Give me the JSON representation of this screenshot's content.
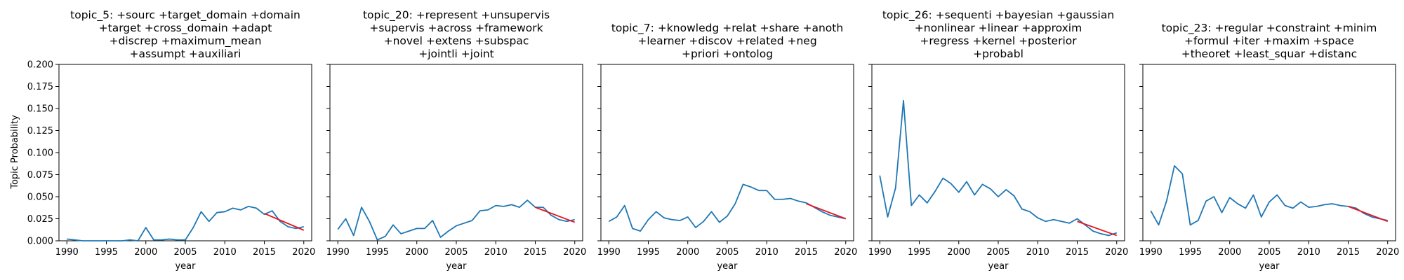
{
  "figure": {
    "ylabel": "Topic Probability",
    "xlabel": "year"
  },
  "chart_data": [
    {
      "type": "line",
      "title_lines": [
        "topic_5: +sourc +target_domain +domain",
        "+target +cross_domain +adapt",
        "+discrep +maximum_mean",
        "+assumpt +auxiliari"
      ],
      "xlabel": "year",
      "ylabel": "Topic Probability",
      "xlim": [
        1989,
        2021
      ],
      "ylim": [
        0,
        0.2
      ],
      "xticks": [
        1990,
        1995,
        2000,
        2005,
        2010,
        2015,
        2020
      ],
      "yticks": [
        0.0,
        0.025,
        0.05,
        0.075,
        0.1,
        0.125,
        0.15,
        0.175,
        0.2
      ],
      "ytick_labels": [
        "0.000",
        "0.025",
        "0.050",
        "0.075",
        "0.100",
        "0.125",
        "0.150",
        "0.175",
        "0.200"
      ],
      "show_ytick_labels": true,
      "series": [
        {
          "x": [
            1990,
            1991,
            1992,
            1993,
            1994,
            1995,
            1996,
            1997,
            1998,
            1999,
            2000,
            2001,
            2002,
            2003,
            2004,
            2005,
            2006,
            2007,
            2008,
            2009,
            2010,
            2011,
            2012,
            2013,
            2014,
            2015,
            2016,
            2017,
            2018,
            2019,
            2020
          ],
          "values": [
            0.002,
            0.001,
            0.0,
            0.0,
            0.0,
            0.0,
            0.0,
            0.0,
            0.001,
            0.0,
            0.015,
            0.001,
            0.001,
            0.002,
            0.001,
            0.001,
            0.015,
            0.033,
            0.022,
            0.032,
            0.033,
            0.037,
            0.035,
            0.039,
            0.037,
            0.03,
            0.034,
            0.022,
            0.016,
            0.014,
            0.016
          ]
        }
      ],
      "trend": {
        "x": [
          2015,
          2020
        ],
        "values": [
          0.031,
          0.012
        ]
      }
    },
    {
      "type": "line",
      "title_lines": [
        "topic_20: +represent +unsupervis",
        "+supervis +across +framework",
        "+novel +extens +subspac",
        "+jointli +joint"
      ],
      "xlabel": "year",
      "ylabel": "",
      "xlim": [
        1989,
        2021
      ],
      "ylim": [
        0,
        0.2
      ],
      "xticks": [
        1990,
        1995,
        2000,
        2005,
        2010,
        2015,
        2020
      ],
      "yticks": [
        0.0,
        0.025,
        0.05,
        0.075,
        0.1,
        0.125,
        0.15,
        0.175,
        0.2
      ],
      "ytick_labels": [],
      "show_ytick_labels": false,
      "series": [
        {
          "x": [
            1990,
            1991,
            1992,
            1993,
            1994,
            1995,
            1996,
            1997,
            1998,
            1999,
            2000,
            2001,
            2002,
            2003,
            2004,
            2005,
            2006,
            2007,
            2008,
            2009,
            2010,
            2011,
            2012,
            2013,
            2014,
            2015,
            2016,
            2017,
            2018,
            2019,
            2020
          ],
          "values": [
            0.013,
            0.025,
            0.006,
            0.038,
            0.022,
            0.001,
            0.005,
            0.018,
            0.008,
            0.011,
            0.014,
            0.014,
            0.023,
            0.004,
            0.011,
            0.017,
            0.02,
            0.023,
            0.034,
            0.035,
            0.04,
            0.039,
            0.041,
            0.038,
            0.046,
            0.038,
            0.038,
            0.029,
            0.024,
            0.022,
            0.024
          ]
        }
      ],
      "trend": {
        "x": [
          2015,
          2020
        ],
        "values": [
          0.038,
          0.021
        ]
      }
    },
    {
      "type": "line",
      "title_lines": [
        "topic_7: +knowledg +relat +share +anoth",
        "+learner +discov +related +neg",
        "+priori +ontolog"
      ],
      "xlabel": "year",
      "ylabel": "",
      "xlim": [
        1989,
        2021
      ],
      "ylim": [
        0,
        0.2
      ],
      "xticks": [
        1990,
        1995,
        2000,
        2005,
        2010,
        2015,
        2020
      ],
      "yticks": [
        0.0,
        0.025,
        0.05,
        0.075,
        0.1,
        0.125,
        0.15,
        0.175,
        0.2
      ],
      "ytick_labels": [],
      "show_ytick_labels": false,
      "series": [
        {
          "x": [
            1990,
            1991,
            1992,
            1993,
            1994,
            1995,
            1996,
            1997,
            1998,
            1999,
            2000,
            2001,
            2002,
            2003,
            2004,
            2005,
            2006,
            2007,
            2008,
            2009,
            2010,
            2011,
            2012,
            2013,
            2014,
            2015,
            2016,
            2017,
            2018,
            2019,
            2020
          ],
          "values": [
            0.022,
            0.027,
            0.04,
            0.014,
            0.011,
            0.024,
            0.033,
            0.026,
            0.024,
            0.023,
            0.027,
            0.015,
            0.022,
            0.033,
            0.021,
            0.028,
            0.042,
            0.064,
            0.061,
            0.057,
            0.057,
            0.047,
            0.047,
            0.048,
            0.045,
            0.043,
            0.038,
            0.033,
            0.029,
            0.027,
            0.025
          ]
        }
      ],
      "trend": {
        "x": [
          2015,
          2020
        ],
        "values": [
          0.042,
          0.025
        ]
      }
    },
    {
      "type": "line",
      "title_lines": [
        "topic_26: +sequenti +bayesian +gaussian",
        "+nonlinear +linear +approxim",
        "+regress +kernel +posterior",
        "+probabl"
      ],
      "xlabel": "year",
      "ylabel": "",
      "xlim": [
        1989,
        2021
      ],
      "ylim": [
        0,
        0.2
      ],
      "xticks": [
        1990,
        1995,
        2000,
        2005,
        2010,
        2015,
        2020
      ],
      "yticks": [
        0.0,
        0.025,
        0.05,
        0.075,
        0.1,
        0.125,
        0.15,
        0.175,
        0.2
      ],
      "ytick_labels": [],
      "show_ytick_labels": false,
      "series": [
        {
          "x": [
            1990,
            1991,
            1992,
            1993,
            1994,
            1995,
            1996,
            1997,
            1998,
            1999,
            2000,
            2001,
            2002,
            2003,
            2004,
            2005,
            2006,
            2007,
            2008,
            2009,
            2010,
            2011,
            2012,
            2013,
            2014,
            2015,
            2016,
            2017,
            2018,
            2019,
            2020
          ],
          "values": [
            0.074,
            0.027,
            0.06,
            0.159,
            0.04,
            0.052,
            0.043,
            0.056,
            0.071,
            0.065,
            0.055,
            0.067,
            0.052,
            0.064,
            0.059,
            0.05,
            0.058,
            0.051,
            0.036,
            0.033,
            0.026,
            0.022,
            0.024,
            0.022,
            0.02,
            0.025,
            0.018,
            0.011,
            0.008,
            0.006,
            0.009
          ]
        }
      ],
      "trend": {
        "x": [
          2015,
          2020
        ],
        "values": [
          0.022,
          0.006
        ]
      }
    },
    {
      "type": "line",
      "title_lines": [
        "topic_23: +regular +constraint +minim",
        "+formul +iter +maxim +space",
        "+theoret +least_squar +distanc"
      ],
      "xlabel": "year",
      "ylabel": "",
      "xlim": [
        1989,
        2021
      ],
      "ylim": [
        0,
        0.2
      ],
      "xticks": [
        1990,
        1995,
        2000,
        2005,
        2010,
        2015,
        2020
      ],
      "yticks": [
        0.0,
        0.025,
        0.05,
        0.075,
        0.1,
        0.125,
        0.15,
        0.175,
        0.2
      ],
      "ytick_labels": [],
      "show_ytick_labels": false,
      "series": [
        {
          "x": [
            1990,
            1991,
            1992,
            1993,
            1994,
            1995,
            1996,
            1997,
            1998,
            1999,
            2000,
            2001,
            2002,
            2003,
            2004,
            2005,
            2006,
            2007,
            2008,
            2009,
            2010,
            2011,
            2012,
            2013,
            2014,
            2015,
            2016,
            2017,
            2018,
            2019,
            2020
          ],
          "values": [
            0.034,
            0.018,
            0.045,
            0.085,
            0.076,
            0.018,
            0.023,
            0.045,
            0.05,
            0.032,
            0.049,
            0.042,
            0.037,
            0.052,
            0.027,
            0.044,
            0.052,
            0.04,
            0.037,
            0.044,
            0.038,
            0.039,
            0.041,
            0.042,
            0.04,
            0.039,
            0.037,
            0.031,
            0.027,
            0.025,
            0.023
          ]
        }
      ],
      "trend": {
        "x": [
          2015,
          2020
        ],
        "values": [
          0.039,
          0.022
        ]
      }
    }
  ]
}
